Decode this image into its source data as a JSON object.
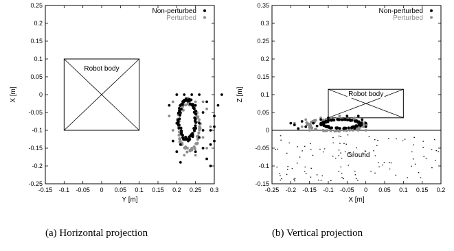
{
  "colors": {
    "non_perturbed": "#000000",
    "perturbed": "#8c8c8c",
    "ground": "#000000"
  },
  "captions": {
    "a": "(a) Horizontal projection",
    "b": "(b) Vertical projection"
  },
  "chart_data": [
    {
      "type": "scatter",
      "id": "horizontal",
      "xlabel": "Y [m]",
      "ylabel": "X [m]",
      "xlim": [
        -0.15,
        0.3
      ],
      "ylim": [
        -0.25,
        0.25
      ],
      "xticks": [
        "-0.15",
        "-0.1",
        "-0.05",
        "0",
        "0.05",
        "0.1",
        "0.15",
        "0.2",
        "0.25",
        "0.3"
      ],
      "yticks": [
        "-0.25",
        "-0.2",
        "-0.15",
        "-0.1",
        "-0.05",
        "0",
        "0.05",
        "0.1",
        "0.15",
        "0.2",
        "0.25"
      ],
      "legend": {
        "position": "top-right",
        "entries": [
          "Non-perturbed",
          "Perturbed"
        ]
      },
      "annotation": {
        "text": "Robot body",
        "box": {
          "x0": -0.1,
          "x1": 0.1,
          "y0": -0.1,
          "y1": 0.1
        }
      },
      "series": [
        {
          "name": "Non-perturbed",
          "loop": {
            "cx": 0.228,
            "cy": -0.07,
            "rx": 0.022,
            "ry": 0.055
          },
          "scatter": [
            [
              0.18,
              -0.03
            ],
            [
              0.19,
              -0.13
            ],
            [
              0.2,
              0.0
            ],
            [
              0.2,
              -0.16
            ],
            [
              0.21,
              -0.14
            ],
            [
              0.21,
              -0.05
            ],
            [
              0.22,
              0.0
            ],
            [
              0.24,
              0.0
            ],
            [
              0.25,
              -0.03
            ],
            [
              0.26,
              -0.08
            ],
            [
              0.26,
              -0.12
            ],
            [
              0.27,
              -0.05
            ],
            [
              0.27,
              -0.15
            ],
            [
              0.28,
              -0.02
            ],
            [
              0.28,
              -0.18
            ],
            [
              0.29,
              -0.1
            ],
            [
              0.29,
              -0.14
            ],
            [
              0.29,
              -0.2
            ],
            [
              0.3,
              -0.06
            ],
            [
              0.3,
              -0.13
            ],
            [
              0.31,
              -0.03
            ],
            [
              0.32,
              0.0
            ],
            [
              0.2,
              -0.08
            ],
            [
              0.25,
              -0.16
            ],
            [
              0.27,
              -0.1
            ],
            [
              0.3,
              -0.09
            ],
            [
              0.26,
              0.0
            ],
            [
              0.21,
              -0.19
            ]
          ]
        },
        {
          "name": "Perturbed",
          "loop": {
            "cx": 0.232,
            "cy": -0.09,
            "rx": 0.028,
            "ry": 0.065
          },
          "scatter": [
            [
              0.18,
              -0.06
            ],
            [
              0.19,
              -0.02
            ],
            [
              0.19,
              -0.1
            ],
            [
              0.2,
              0.0
            ],
            [
              0.2,
              -0.16
            ],
            [
              0.21,
              -0.03
            ],
            [
              0.21,
              -0.13
            ],
            [
              0.22,
              -0.17
            ],
            [
              0.23,
              -0.01
            ],
            [
              0.24,
              -0.15
            ],
            [
              0.25,
              -0.02
            ],
            [
              0.25,
              -0.17
            ],
            [
              0.26,
              -0.07
            ],
            [
              0.27,
              -0.12
            ],
            [
              0.28,
              -0.04
            ],
            [
              0.28,
              -0.15
            ],
            [
              0.29,
              -0.09
            ],
            [
              0.27,
              -0.02
            ],
            [
              0.19,
              -0.13
            ],
            [
              0.24,
              0.0
            ]
          ]
        }
      ]
    },
    {
      "type": "scatter",
      "id": "vertical",
      "xlabel": "X [m]",
      "ylabel": "Z [m]",
      "xlim": [
        -0.25,
        0.2
      ],
      "ylim": [
        -0.15,
        0.35
      ],
      "xticks": [
        "-0.25",
        "-0.2",
        "-0.15",
        "-0.1",
        "-0.05",
        "0",
        "0.05",
        "0.1",
        "0.15",
        "0.2"
      ],
      "yticks": [
        "-0.15",
        "-0.1",
        "-0.05",
        "0",
        "0.05",
        "0.1",
        "0.15",
        "0.2",
        "0.25",
        "0.3",
        "0.35"
      ],
      "legend": {
        "position": "top-right",
        "entries": [
          "Non-perturbed",
          "Perturbed"
        ]
      },
      "annotation": {
        "text": "Robot body",
        "box": {
          "x0": -0.1,
          "x1": 0.1,
          "y0": 0.035,
          "y1": 0.115
        }
      },
      "ground": {
        "label": "Ground",
        "z": 0
      },
      "series": [
        {
          "name": "Non-perturbed",
          "loop": {
            "cx": -0.065,
            "cy": 0.018,
            "rx": 0.05,
            "ry": 0.012
          },
          "scatter": [
            [
              -0.2,
              0.02
            ],
            [
              -0.19,
              0.015
            ],
            [
              -0.17,
              0.025
            ],
            [
              -0.16,
              0.01
            ],
            [
              -0.14,
              0.02
            ],
            [
              -0.12,
              0.03
            ],
            [
              -0.1,
              0.035
            ],
            [
              -0.05,
              0.04
            ],
            [
              -0.02,
              0.04
            ],
            [
              -0.01,
              0.03
            ],
            [
              0.0,
              0.02
            ],
            [
              0.0,
              0.01
            ],
            [
              -0.03,
              0.005
            ],
            [
              -0.18,
              0.005
            ],
            [
              -0.13,
              0.012
            ]
          ]
        },
        {
          "name": "Perturbed",
          "loop": {
            "cx": -0.08,
            "cy": 0.015,
            "rx": 0.075,
            "ry": 0.017
          },
          "scatter": [
            [
              -0.19,
              0.02
            ],
            [
              -0.17,
              0.01
            ],
            [
              -0.16,
              0.03
            ],
            [
              -0.15,
              0.0
            ],
            [
              -0.12,
              0.035
            ],
            [
              -0.07,
              0.04
            ],
            [
              -0.03,
              0.035
            ],
            [
              -0.01,
              0.025
            ],
            [
              0.0,
              0.0
            ],
            [
              -0.02,
              0.0
            ],
            [
              -0.14,
              0.025
            ]
          ]
        }
      ]
    }
  ]
}
